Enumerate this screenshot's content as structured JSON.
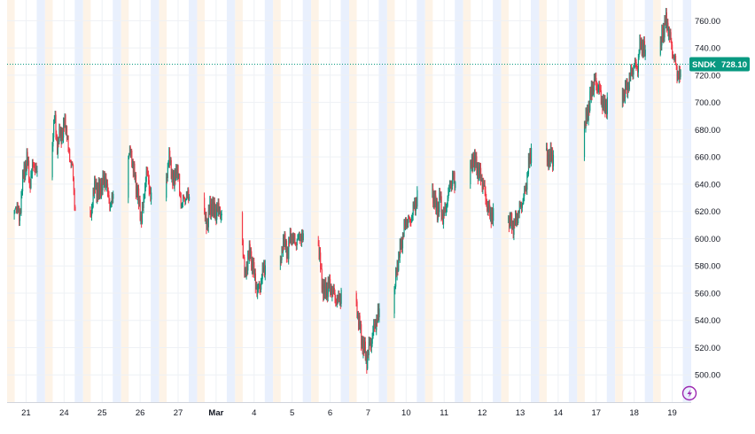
{
  "symbol": "SNDK",
  "last_price": "728.10",
  "colors": {
    "up": "#089981",
    "down": "#f23645",
    "grid": "#eef1f5",
    "session_blue": "#e9f0fd",
    "session_orange": "#fdf3e7",
    "price_line": "#089981",
    "axis_text": "#131722",
    "replay_icon": "#9c27b0"
  },
  "icons": {
    "replay": "replay-lightning-icon"
  },
  "chart_data": {
    "type": "candlestick",
    "ylim": [
      480,
      770
    ],
    "y_ticks": [
      500,
      520,
      540,
      560,
      580,
      600,
      620,
      640,
      660,
      680,
      700,
      720,
      740,
      760
    ],
    "y_tick_labels": [
      "500.00",
      "520.00",
      "540.00",
      "560.00",
      "580.00",
      "600.00",
      "620.00",
      "640.00",
      "660.00",
      "680.00",
      "700.00",
      "720.00",
      "740.00",
      "760.00"
    ],
    "x_labels": [
      "21",
      "24",
      "25",
      "26",
      "27",
      "Mar",
      "4",
      "5",
      "6",
      "7",
      "10",
      "11",
      "12",
      "13",
      "14",
      "17",
      "18",
      "19"
    ],
    "last_price": 728.1,
    "days": [
      {
        "label": "21",
        "points": [
          618,
          628,
          612,
          640,
          650,
          660,
          640,
          650,
          655,
          645
        ]
      },
      {
        "label": "24",
        "points": [
          670,
          690,
          665,
          680,
          675,
          690,
          670,
          660,
          650,
          620
        ]
      },
      {
        "label": "25",
        "points": [
          615,
          630,
          640,
          632,
          638,
          640,
          645,
          630,
          625,
          630
        ]
      },
      {
        "label": "26",
        "points": [
          660,
          665,
          650,
          640,
          628,
          615,
          625,
          650,
          640,
          630
        ]
      },
      {
        "label": "27",
        "points": [
          645,
          660,
          650,
          640,
          655,
          640,
          625,
          630,
          632,
          630
        ]
      },
      {
        "label": "Mar",
        "points": [
          615,
          610,
          620,
          625,
          618,
          622,
          619,
          null,
          null,
          null
        ]
      },
      {
        "label": "4",
        "points": [
          600,
          570,
          585,
          590,
          580,
          570,
          560,
          565,
          575,
          580
        ]
      },
      {
        "label": "5",
        "points": [
          580,
          600,
          595,
          590,
          605,
          600,
          598,
          600,
          603,
          598
        ]
      },
      {
        "label": "6",
        "points": [
          595,
          575,
          560,
          562,
          565,
          563,
          560,
          555,
          555,
          560
        ]
      },
      {
        "label": "7",
        "points": [
          550,
          540,
          525,
          520,
          510,
          520,
          525,
          535,
          540,
          545
        ]
      },
      {
        "label": "10",
        "points": [
          560,
          580,
          590,
          600,
          610,
          615,
          612,
          618,
          625,
          630
        ]
      },
      {
        "label": "11",
        "points": [
          635,
          625,
          620,
          630,
          615,
          620,
          630,
          640,
          645,
          640
        ]
      },
      {
        "label": "12",
        "points": [
          650,
          660,
          655,
          650,
          645,
          640,
          630,
          620,
          618,
          615
        ]
      },
      {
        "label": "13",
        "points": [
          615,
          612,
          610,
          615,
          620,
          625,
          630,
          640,
          655,
          665
        ]
      },
      {
        "label": "14",
        "points": [
          660,
          659,
          660,
          null,
          null,
          null,
          null,
          null,
          null,
          null
        ]
      },
      {
        "label": "17",
        "points": [
          682,
          690,
          700,
          710,
          715,
          712,
          708,
          700,
          695,
          700
        ]
      },
      {
        "label": "18",
        "points": [
          705,
          710,
          712,
          720,
          725,
          728,
          726,
          745,
          740,
          735
        ]
      },
      {
        "label": "19",
        "points": [
          740,
          752,
          760,
          755,
          745,
          735,
          728,
          720,
          null,
          null
        ]
      }
    ]
  }
}
